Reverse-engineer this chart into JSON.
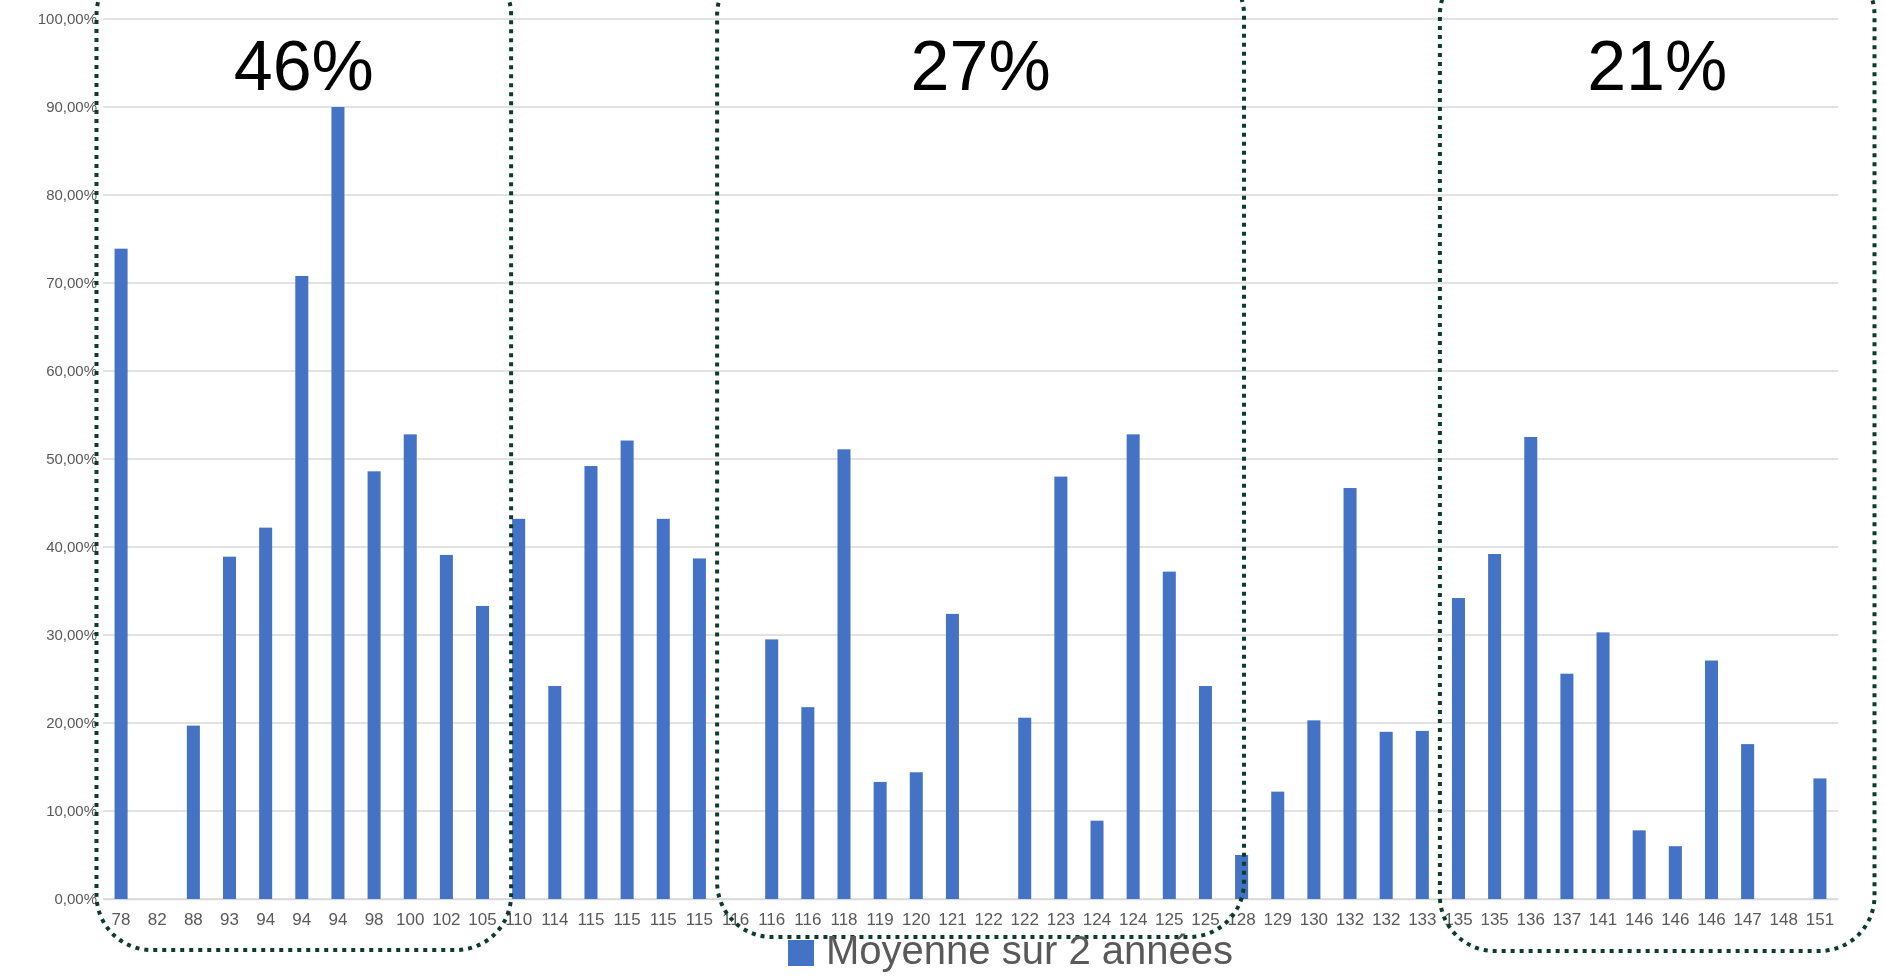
{
  "chart_data": {
    "type": "bar",
    "categories": [
      "78",
      "82",
      "88",
      "93",
      "94",
      "94",
      "94",
      "98",
      "100",
      "102",
      "105",
      "110",
      "114",
      "115",
      "115",
      "115",
      "115",
      "116",
      "116",
      "116",
      "118",
      "119",
      "120",
      "121",
      "122",
      "122",
      "123",
      "124",
      "124",
      "125",
      "125",
      "128",
      "129",
      "130",
      "132",
      "132",
      "133",
      "135",
      "135",
      "136",
      "137",
      "141",
      "146",
      "146",
      "146",
      "147",
      "148",
      "151"
    ],
    "series": [
      {
        "name": "Moyenne sur 2 années",
        "color": "#4472c4",
        "values": [
          73.9,
          0,
          19.7,
          38.9,
          42.2,
          70.8,
          90.0,
          48.6,
          52.8,
          39.1,
          33.3,
          43.2,
          24.2,
          49.2,
          52.1,
          43.2,
          38.7,
          0,
          29.5,
          21.8,
          51.1,
          13.3,
          14.4,
          32.4,
          0,
          20.6,
          48.0,
          8.9,
          52.8,
          37.2,
          24.2,
          5.0,
          12.2,
          20.3,
          46.7,
          19.0,
          19.1,
          34.2,
          39.2,
          52.5,
          25.6,
          30.3,
          7.8,
          6.0,
          27.1,
          17.6,
          0,
          13.7
        ]
      }
    ],
    "ylim": [
      0,
      100
    ],
    "yticks": [
      {
        "value": 0,
        "label": "0,00%"
      },
      {
        "value": 10,
        "label": "10,00%"
      },
      {
        "value": 20,
        "label": "20,00%"
      },
      {
        "value": 30,
        "label": "30,00%"
      },
      {
        "value": 40,
        "label": "40,00%"
      },
      {
        "value": 50,
        "label": "50,00%"
      },
      {
        "value": 60,
        "label": "60,00%"
      },
      {
        "value": 70,
        "label": "70,00%"
      },
      {
        "value": 80,
        "label": "80,00%"
      },
      {
        "value": 90,
        "label": "90,00%"
      },
      {
        "value": 100,
        "label": "100,00%"
      }
    ],
    "grid": "y",
    "legend": "bottom",
    "annotations": [
      "46%",
      "27%",
      "21%"
    ]
  }
}
